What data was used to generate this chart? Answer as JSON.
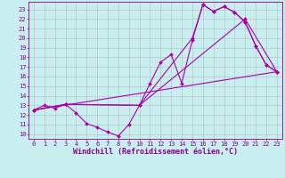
{
  "xlabel": "Windchill (Refroidissement éolien,°C)",
  "background_color": "#c8eef0",
  "line_color": "#aa00aa",
  "grid_color": "#b0b0b0",
  "xlim": [
    -0.5,
    23.5
  ],
  "ylim": [
    9.5,
    23.8
  ],
  "xticks": [
    0,
    1,
    2,
    3,
    4,
    5,
    6,
    7,
    8,
    9,
    10,
    11,
    12,
    13,
    14,
    15,
    16,
    17,
    18,
    19,
    20,
    21,
    22,
    23
  ],
  "yticks": [
    10,
    11,
    12,
    13,
    14,
    15,
    16,
    17,
    18,
    19,
    20,
    21,
    22,
    23
  ],
  "line1_x": [
    0,
    1,
    2,
    3,
    4,
    5,
    6,
    7,
    8,
    9,
    10,
    11,
    12,
    13,
    14,
    15,
    16,
    17,
    18,
    19,
    20,
    21,
    22,
    23
  ],
  "line1_y": [
    12.5,
    13.0,
    12.7,
    13.1,
    12.2,
    11.1,
    10.7,
    10.2,
    9.8,
    11.0,
    13.0,
    15.3,
    17.5,
    18.3,
    15.3,
    19.8,
    23.5,
    22.8,
    23.3,
    22.7,
    21.7,
    19.2,
    17.2,
    16.5
  ],
  "line2_x": [
    0,
    3,
    10,
    15,
    16,
    17,
    18,
    19,
    20,
    21,
    22,
    23
  ],
  "line2_y": [
    12.5,
    13.1,
    13.0,
    20.0,
    23.5,
    22.8,
    23.3,
    22.7,
    21.7,
    19.2,
    17.2,
    16.5
  ],
  "line3_x": [
    0,
    3,
    10,
    20,
    23
  ],
  "line3_y": [
    12.5,
    13.1,
    13.0,
    22.0,
    16.5
  ],
  "line4_x": [
    0,
    23
  ],
  "line4_y": [
    12.5,
    16.5
  ],
  "marker": "D",
  "markersize": 2,
  "linewidth": 0.8,
  "xlabel_fontsize": 6,
  "tick_fontsize": 5
}
